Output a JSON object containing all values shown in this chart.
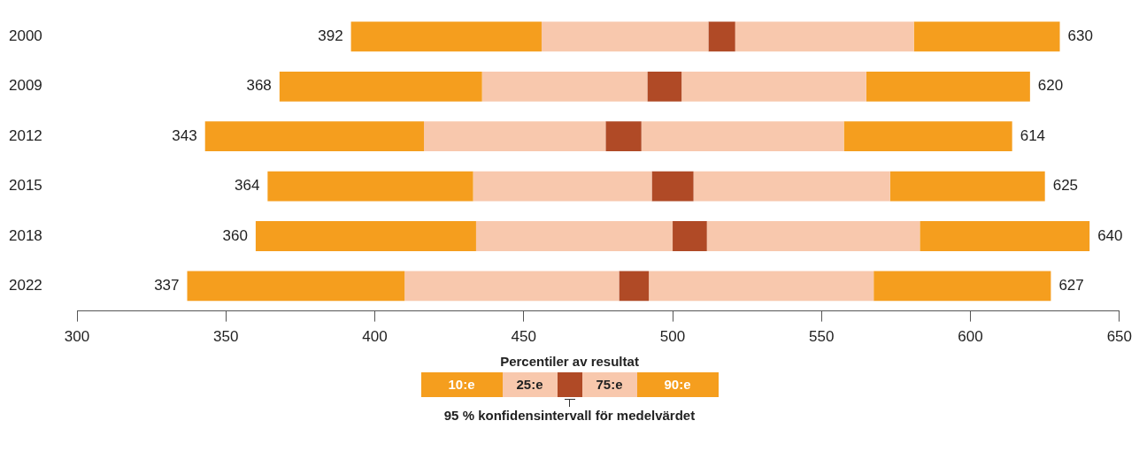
{
  "chart_data": {
    "type": "bar",
    "orientation": "horizontal",
    "categories": [
      "2000",
      "2009",
      "2012",
      "2015",
      "2018",
      "2022"
    ],
    "series": [
      {
        "name": "10:e",
        "color": "#f59e1e",
        "base": [
          392,
          368,
          343,
          364,
          360,
          337
        ],
        "values": [
          64,
          68,
          73.5,
          69,
          74,
          73
        ]
      },
      {
        "name": "25:e",
        "color": "#f8c8ad",
        "base": [
          456,
          436,
          416.5,
          433,
          434,
          410
        ],
        "values": [
          56,
          55.5,
          61,
          60,
          66,
          72
        ]
      },
      {
        "color": "#b04a26",
        "base": [
          512,
          491.5,
          477.5,
          493,
          500,
          482
        ],
        "values": [
          9,
          11.5,
          12,
          14,
          11.5,
          10
        ]
      },
      {
        "name": "75:e",
        "color": "#f8c8ad",
        "base": [
          521,
          503,
          489.5,
          507,
          511.5,
          492
        ],
        "values": [
          60,
          62,
          68,
          66,
          71.5,
          75.5
        ]
      },
      {
        "name": "90:e",
        "color": "#f59e1e",
        "base": [
          581,
          565,
          557.5,
          573,
          583,
          567.5
        ],
        "values": [
          49,
          55,
          56.5,
          52,
          57,
          59.5
        ]
      }
    ],
    "xlim": [
      300,
      650
    ],
    "xticks": [
      300,
      350,
      400,
      450,
      500,
      550,
      600,
      650
    ],
    "grid": false,
    "legend": "bottom",
    "legend_title": "Percentiler av resultat",
    "annotations": [
      "392",
      "630",
      "368",
      "620",
      "343",
      "614",
      "364",
      "625",
      "360",
      "640",
      "337",
      "627",
      "95 % konfidensintervall för medelvärdet"
    ]
  }
}
